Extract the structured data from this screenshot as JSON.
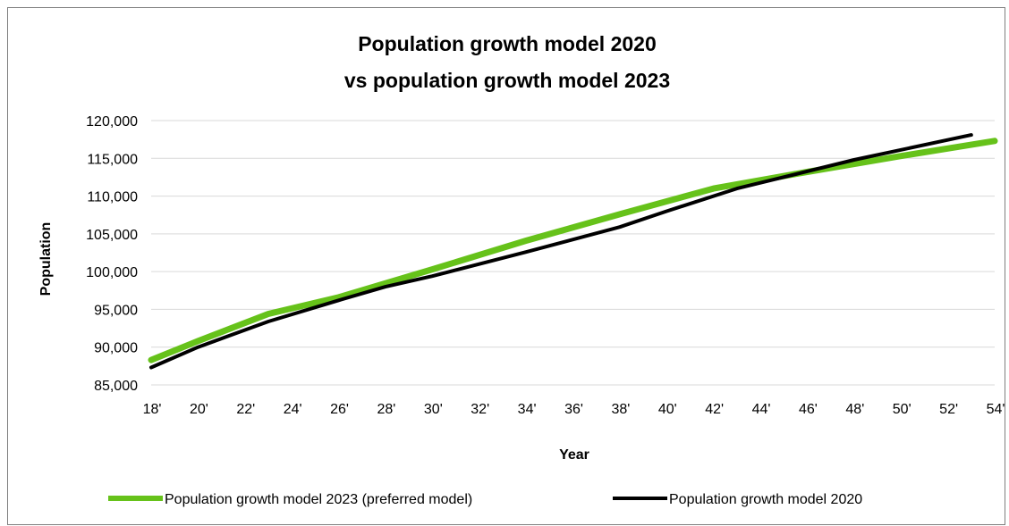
{
  "chart_data": {
    "type": "line",
    "title_lines": [
      "Population growth model 2020",
      "vs population growth model 2023"
    ],
    "xlabel": "Year",
    "ylabel": "Population",
    "x_tick_labels": [
      "18'",
      "20'",
      "22'",
      "24'",
      "26'",
      "28'",
      "30'",
      "32'",
      "34'",
      "36'",
      "38'",
      "40'",
      "42'",
      "44'",
      "46'",
      "48'",
      "50'",
      "52'",
      "54'"
    ],
    "x_ticks": [
      2018,
      2020,
      2022,
      2024,
      2026,
      2028,
      2030,
      2032,
      2034,
      2036,
      2038,
      2040,
      2042,
      2044,
      2046,
      2048,
      2050,
      2052,
      2054
    ],
    "xlim": [
      2018,
      2054
    ],
    "y_tick_labels": [
      "85,000",
      "90,000",
      "95,000",
      "100,000",
      "105,000",
      "110,000",
      "115,000",
      "120,000"
    ],
    "y_ticks": [
      85000,
      90000,
      95000,
      100000,
      105000,
      110000,
      115000,
      120000
    ],
    "ylim": [
      85000,
      120000
    ],
    "grid": "horizontal",
    "legend_position": "bottom",
    "series": [
      {
        "name": "Population growth model 2023 (preferred model)",
        "color": "#66c21a",
        "x": [
          2018,
          2020,
          2023,
          2026,
          2030,
          2034,
          2038,
          2042,
          2046,
          2050,
          2054
        ],
        "values": [
          88300,
          90800,
          94400,
          96600,
          100300,
          104100,
          107600,
          111000,
          113200,
          115300,
          117300
        ]
      },
      {
        "name": "Population growth model 2020",
        "color": "#000000",
        "x": [
          2018,
          2020,
          2023,
          2026,
          2028,
          2030,
          2034,
          2038,
          2040,
          2043,
          2048,
          2053
        ],
        "values": [
          87300,
          90000,
          93400,
          96200,
          98000,
          99400,
          102600,
          105900,
          108000,
          111000,
          114800,
          118100
        ]
      }
    ]
  }
}
